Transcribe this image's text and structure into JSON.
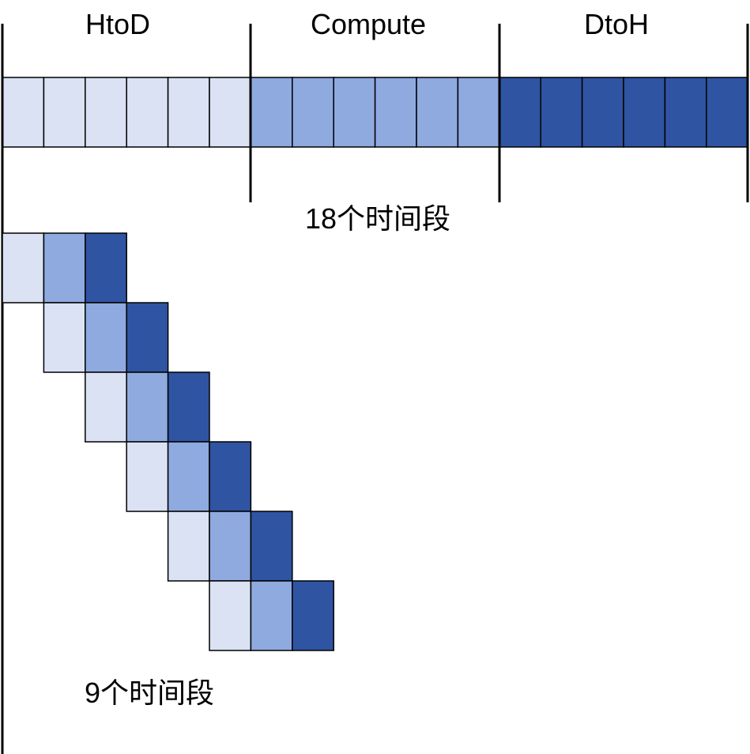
{
  "colors": {
    "htod": "#dae2f4",
    "compute": "#8eaadf",
    "dtoh": "#2e54a2",
    "line": "#000000"
  },
  "phases": [
    {
      "label": "HtoD",
      "color_key": "htod",
      "segments": 6
    },
    {
      "label": "Compute",
      "color_key": "compute",
      "segments": 6
    },
    {
      "label": "DtoH",
      "color_key": "dtoh",
      "segments": 6
    }
  ],
  "serial": {
    "caption": "18个时间段"
  },
  "pipelined": {
    "rows": 6,
    "stages_per_row": [
      "htod",
      "compute",
      "dtoh"
    ],
    "caption": "9个时间段"
  }
}
